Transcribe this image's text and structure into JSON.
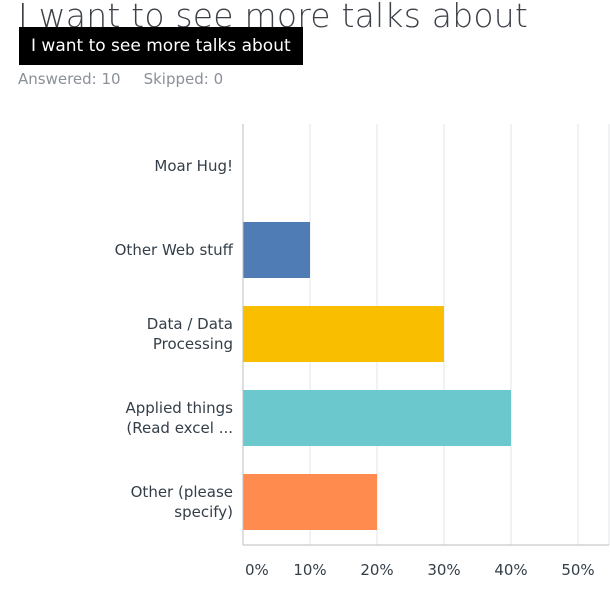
{
  "question": {
    "title": "I want to see more talks about",
    "tooltip": "I want to see more talks about"
  },
  "stats": {
    "answered": "Answered: 10",
    "skipped": "Skipped: 0"
  },
  "chart_data": {
    "type": "bar",
    "orientation": "horizontal",
    "categories": [
      [
        "Moar Hug!"
      ],
      [
        "Other Web stuff"
      ],
      [
        "Data / Data",
        "Processing"
      ],
      [
        "Applied things",
        "(Read excel ..."
      ],
      [
        "Other (please",
        "specify)"
      ]
    ],
    "values": [
      0,
      10,
      30,
      40,
      20
    ],
    "colors": [
      "#9ad5b0",
      "#507cb6",
      "#f9be00",
      "#6bc8cd",
      "#ff8b4f"
    ],
    "xlim": [
      0,
      50
    ],
    "xticks": [
      "0%",
      "10%",
      "20%",
      "30%",
      "40%",
      "50%"
    ],
    "tick_values": [
      0,
      10,
      20,
      30,
      40,
      50
    ],
    "grid": true
  }
}
